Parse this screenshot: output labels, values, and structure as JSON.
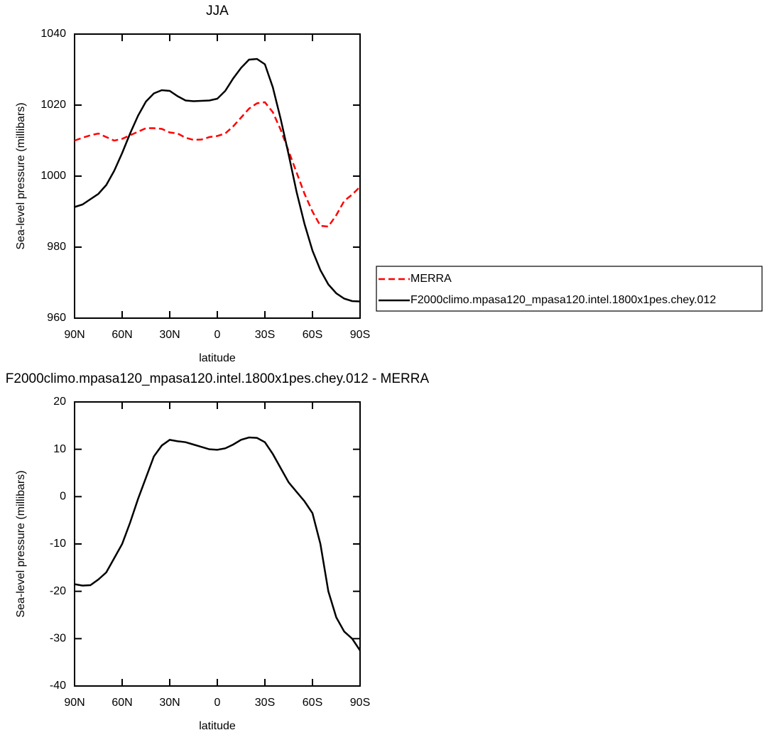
{
  "chart_data": [
    {
      "type": "line",
      "title": "JJA",
      "xlabel": "latitude",
      "ylabel": "Sea-level pressure (millibars)",
      "x": [
        90,
        85,
        80,
        75,
        70,
        65,
        60,
        55,
        50,
        45,
        40,
        35,
        30,
        25,
        20,
        15,
        10,
        5,
        0,
        -5,
        -10,
        -15,
        -20,
        -25,
        -30,
        -35,
        -40,
        -45,
        -50,
        -55,
        -60,
        -65,
        -70,
        -75,
        -80,
        -85,
        -90
      ],
      "xlim": [
        90,
        -90
      ],
      "xticks": [
        {
          "value": 90,
          "label": "90N"
        },
        {
          "value": 60,
          "label": "60N"
        },
        {
          "value": 30,
          "label": "30N"
        },
        0,
        {
          "value": -30,
          "label": "30S"
        },
        {
          "value": -60,
          "label": "60S"
        },
        {
          "value": -90,
          "label": "90S"
        }
      ],
      "ylim": [
        960,
        1040
      ],
      "yticks": [
        960,
        980,
        1000,
        1020,
        1040
      ],
      "legend": "right",
      "series": [
        {
          "name": "MERRA",
          "color": "#ff0000",
          "dashed": true,
          "values": [
            1010,
            1010.8,
            1011.5,
            1012,
            1011,
            1010,
            1010.5,
            1011.5,
            1012.5,
            1013.5,
            1013.5,
            1013.3,
            1012.3,
            1012,
            1010.8,
            1010.2,
            1010.3,
            1011,
            1011.3,
            1012,
            1014,
            1016.5,
            1019,
            1020.5,
            1020.8,
            1018,
            1013,
            1007,
            1001,
            995,
            990,
            986,
            985.8,
            989,
            993,
            994.8,
            997
          ]
        },
        {
          "name": "F2000climo.mpasa120_mpasa120.intel.1800x1pes.chey.012",
          "color": "#000000",
          "dashed": false,
          "values": [
            991.3,
            992,
            993.5,
            995,
            997.5,
            1001.5,
            1006.5,
            1012,
            1017,
            1021,
            1023.3,
            1024.2,
            1024,
            1022.5,
            1021.3,
            1021.1,
            1021.2,
            1021.3,
            1021.8,
            1024,
            1027.5,
            1030.5,
            1032.8,
            1033,
            1031.5,
            1025,
            1016,
            1006,
            995.5,
            986.5,
            979,
            973.5,
            969.5,
            967,
            965.5,
            964.8,
            964.7
          ]
        }
      ]
    },
    {
      "type": "line",
      "title": "F2000climo.mpasa120_mpasa120.intel.1800x1pes.chey.012 - MERRA",
      "xlabel": "latitude",
      "ylabel": "Sea-level pressure (millibars)",
      "x": [
        90,
        85,
        80,
        75,
        70,
        65,
        60,
        55,
        50,
        45,
        40,
        35,
        30,
        25,
        20,
        15,
        10,
        5,
        0,
        -5,
        -10,
        -15,
        -20,
        -25,
        -30,
        -35,
        -40,
        -45,
        -50,
        -55,
        -60,
        -65,
        -70,
        -75,
        -80,
        -85,
        -90
      ],
      "xlim": [
        90,
        -90
      ],
      "xticks": [
        {
          "value": 90,
          "label": "90N"
        },
        {
          "value": 60,
          "label": "60N"
        },
        {
          "value": 30,
          "label": "30N"
        },
        0,
        {
          "value": -30,
          "label": "30S"
        },
        {
          "value": -60,
          "label": "60S"
        },
        {
          "value": -90,
          "label": "90S"
        }
      ],
      "ylim": [
        -40,
        20
      ],
      "yticks": [
        -40,
        -30,
        -20,
        -10,
        0,
        10,
        20
      ],
      "series": [
        {
          "color": "#000000",
          "dashed": false,
          "values": [
            -18.5,
            -18.8,
            -18.7,
            -17.5,
            -16,
            -13,
            -10,
            -5.5,
            -0.5,
            4,
            8.5,
            10.8,
            12,
            11.7,
            11.5,
            11,
            10.5,
            10,
            9.9,
            10.2,
            11,
            12,
            12.5,
            12.4,
            11.5,
            9,
            6,
            3,
            1,
            -1,
            -3.5,
            -10,
            -20,
            -25.5,
            -28.5,
            -30,
            -32.5
          ]
        }
      ]
    }
  ]
}
